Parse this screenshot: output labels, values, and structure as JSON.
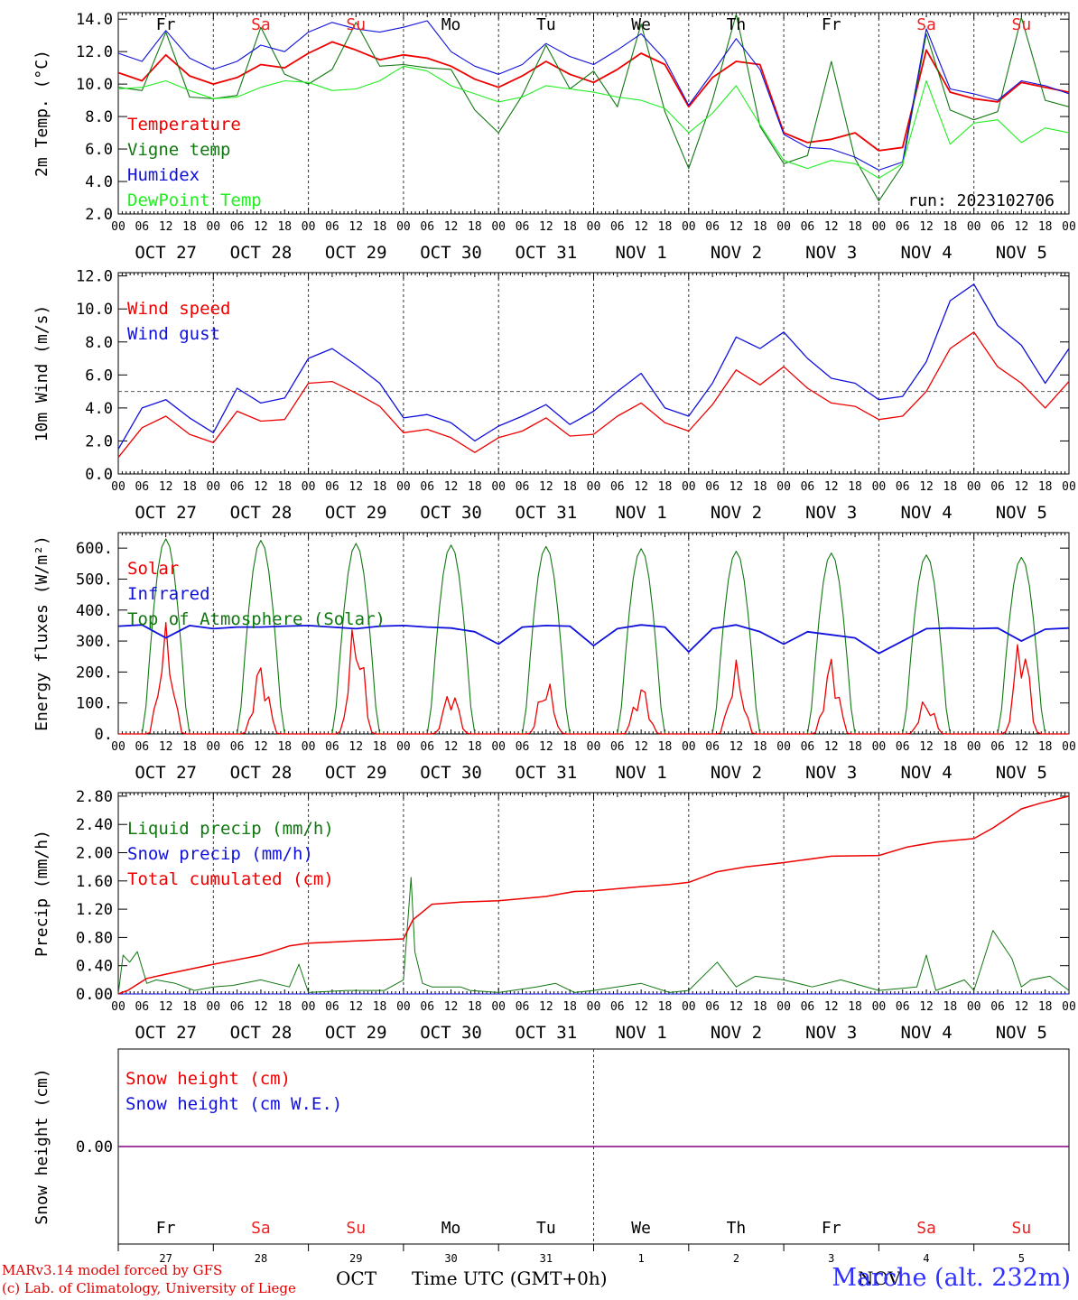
{
  "days_short": [
    "OCT 27",
    "OCT 28",
    "OCT 29",
    "OCT 30",
    "OCT 31",
    "NOV  1",
    "NOV  2",
    "NOV  3",
    "NOV  4",
    "NOV  5"
  ],
  "weekdays": [
    "Fr",
    "Sa",
    "Su",
    "Mo",
    "Tu",
    "We",
    "Th",
    "Fr",
    "Sa",
    "Su"
  ],
  "day_numbers": [
    "27",
    "28",
    "29",
    "30",
    "31",
    "1",
    "2",
    "3",
    "4",
    "5"
  ],
  "hour_ticks": [
    "00",
    "06",
    "12",
    "18"
  ],
  "last_tick": "00",
  "colors": {
    "red": "#ee0000",
    "green": "#117711",
    "blue": "#1010dd",
    "light_green": "#22ee22",
    "weekend": "#ee2222",
    "purple": "#800080"
  },
  "footer": {
    "credit_line1": "MARv3.14 model forced by GFS",
    "credit_line2": "(c) Lab. of Climatology, University of Liege",
    "station": "Marche (alt. 232m)",
    "month_oct": "OCT",
    "time_label": "Time UTC (GMT+0h)",
    "month_nov": "NOV"
  },
  "chart_data": [
    {
      "type": "line",
      "ylabel": "2m Temp. (°C)",
      "ylim": [
        2,
        14.4
      ],
      "yticks": [
        "2.0",
        "4.0",
        "6.0",
        "8.0",
        "10.0",
        "12.0",
        "14.0"
      ],
      "annotation": "run: 2023102706",
      "x_days": [
        0,
        0.25,
        0.5,
        0.75,
        1,
        1.25,
        1.5,
        1.75,
        2,
        2.25,
        2.5,
        2.75,
        3,
        3.25,
        3.5,
        3.75,
        4,
        4.25,
        4.5,
        4.75,
        5,
        5.25,
        5.5,
        5.75,
        6,
        6.25,
        6.5,
        6.75,
        7,
        7.25,
        7.5,
        7.75,
        8,
        8.25,
        8.5,
        8.75,
        9,
        9.25,
        9.5,
        9.75,
        10
      ],
      "series": [
        {
          "name": "Temperature",
          "color": "red",
          "values": [
            10.7,
            10.2,
            11.8,
            10.5,
            10.0,
            10.4,
            11.2,
            11.0,
            11.9,
            12.6,
            12.1,
            11.5,
            11.8,
            11.6,
            11.1,
            10.3,
            9.8,
            10.5,
            11.4,
            10.6,
            10.1,
            10.9,
            11.9,
            11.2,
            8.6,
            10.4,
            11.4,
            11.2,
            7.0,
            6.4,
            6.6,
            7.0,
            5.9,
            6.1,
            12.1,
            9.5,
            9.1,
            8.9,
            10.1,
            9.8,
            9.5
          ]
        },
        {
          "name": "Vigne temp",
          "color": "green",
          "values": [
            9.8,
            9.6,
            13.2,
            9.2,
            9.1,
            9.3,
            13.5,
            10.6,
            10.0,
            10.9,
            13.8,
            11.1,
            11.2,
            11.0,
            10.9,
            8.4,
            7.0,
            9.3,
            12.4,
            9.7,
            10.8,
            8.6,
            13.7,
            8.3,
            4.8,
            9.0,
            14.3,
            7.4,
            5.1,
            5.6,
            11.4,
            5.4,
            2.8,
            5.0,
            13.1,
            8.4,
            7.8,
            8.3,
            14.1,
            9.0,
            8.6
          ]
        },
        {
          "name": "Humidex",
          "color": "blue",
          "values": [
            11.9,
            11.4,
            13.3,
            11.6,
            10.9,
            11.4,
            12.4,
            12.0,
            13.2,
            13.8,
            13.4,
            13.2,
            13.5,
            13.9,
            12.0,
            11.1,
            10.6,
            11.2,
            12.5,
            11.7,
            11.2,
            12.1,
            13.1,
            11.5,
            8.7,
            10.7,
            12.8,
            10.9,
            6.9,
            6.1,
            6.0,
            5.5,
            4.7,
            5.2,
            13.4,
            9.7,
            9.4,
            9.0,
            10.2,
            9.9,
            9.4
          ]
        },
        {
          "name": "DewPoint Temp",
          "color": "light_green",
          "values": [
            9.7,
            9.8,
            10.2,
            9.6,
            9.1,
            9.2,
            9.8,
            10.2,
            10.1,
            9.6,
            9.7,
            10.2,
            11.1,
            10.8,
            9.9,
            9.4,
            8.9,
            9.2,
            9.9,
            9.7,
            9.5,
            9.2,
            9.0,
            8.5,
            7.0,
            8.2,
            9.9,
            7.5,
            5.3,
            4.8,
            5.3,
            5.1,
            4.2,
            5.1,
            10.2,
            6.3,
            7.6,
            7.8,
            6.4,
            7.3,
            7.0
          ]
        }
      ]
    },
    {
      "type": "line",
      "ylabel": "10m Wind (m/s)",
      "ylim": [
        0,
        12.2
      ],
      "yticks": [
        "0.0",
        "2.0",
        "4.0",
        "6.0",
        "8.0",
        "10.0",
        "12.0"
      ],
      "reference_line": 5,
      "x_days": [
        0,
        0.25,
        0.5,
        0.75,
        1,
        1.25,
        1.5,
        1.75,
        2,
        2.25,
        2.5,
        2.75,
        3,
        3.25,
        3.5,
        3.75,
        4,
        4.25,
        4.5,
        4.75,
        5,
        5.25,
        5.5,
        5.75,
        6,
        6.25,
        6.5,
        6.75,
        7,
        7.25,
        7.5,
        7.75,
        8,
        8.25,
        8.5,
        8.75,
        9,
        9.25,
        9.5,
        9.75,
        10
      ],
      "series": [
        {
          "name": "Wind speed",
          "color": "red",
          "values": [
            1.0,
            2.8,
            3.5,
            2.4,
            1.9,
            3.8,
            3.2,
            3.3,
            5.5,
            5.6,
            4.9,
            4.1,
            2.5,
            2.7,
            2.2,
            1.3,
            2.2,
            2.6,
            3.4,
            2.3,
            2.4,
            3.5,
            4.3,
            3.1,
            2.6,
            4.2,
            6.3,
            5.4,
            6.5,
            5.2,
            4.3,
            4.1,
            3.3,
            3.5,
            5.0,
            7.6,
            8.6,
            6.5,
            5.5,
            4.0,
            5.6
          ]
        },
        {
          "name": "Wind gust",
          "color": "blue",
          "values": [
            1.5,
            4.0,
            4.5,
            3.4,
            2.5,
            5.2,
            4.3,
            4.6,
            7.0,
            7.6,
            6.6,
            5.5,
            3.4,
            3.6,
            3.1,
            2.0,
            2.9,
            3.5,
            4.2,
            3.0,
            3.8,
            5.0,
            6.1,
            4.0,
            3.5,
            5.5,
            8.3,
            7.6,
            8.6,
            7.0,
            5.8,
            5.5,
            4.5,
            4.7,
            6.8,
            10.5,
            11.5,
            9.0,
            7.8,
            5.5,
            7.6
          ]
        }
      ]
    },
    {
      "type": "line",
      "ylabel": "Energy fluxes (W/m²)",
      "ylim": [
        0,
        650
      ],
      "yticks": [
        "0.",
        "100.",
        "200.",
        "300.",
        "400.",
        "500.",
        "600."
      ],
      "toa_peaks": [
        630,
        625,
        615,
        610,
        605,
        598,
        590,
        584,
        578,
        570
      ],
      "solar_peaks": [
        360,
        245,
        385,
        155,
        185,
        170,
        240,
        260,
        120,
        350
      ],
      "series": [
        {
          "name": "Solar",
          "color": "red"
        },
        {
          "name": "Infrared",
          "color": "blue",
          "x_days": [
            0,
            0.25,
            0.5,
            0.75,
            1,
            1.25,
            1.5,
            1.75,
            2,
            2.25,
            2.5,
            2.75,
            3,
            3.25,
            3.5,
            3.75,
            4,
            4.25,
            4.5,
            4.75,
            5,
            5.25,
            5.5,
            5.75,
            6,
            6.25,
            6.5,
            6.75,
            7,
            7.25,
            7.5,
            7.75,
            8,
            8.25,
            8.5,
            8.75,
            9,
            9.25,
            9.5,
            9.75,
            10
          ],
          "values": [
            348,
            352,
            310,
            350,
            340,
            345,
            345,
            348,
            350,
            345,
            340,
            348,
            350,
            345,
            342,
            330,
            290,
            345,
            350,
            348,
            285,
            340,
            352,
            345,
            265,
            340,
            352,
            330,
            290,
            330,
            320,
            310,
            260,
            300,
            340,
            342,
            340,
            342,
            300,
            338,
            342
          ]
        },
        {
          "name": "Top of Atmosphere (Solar)",
          "color": "green"
        }
      ]
    },
    {
      "type": "line",
      "ylabel": "Precip (mm/h)",
      "ylim": [
        0,
        2.85
      ],
      "yticks": [
        "0.00",
        "0.40",
        "0.80",
        "1.20",
        "1.60",
        "2.00",
        "2.40",
        "2.80"
      ],
      "series": [
        {
          "name": "Liquid precip (mm/h)",
          "color": "green",
          "x_days": [
            0,
            0.05,
            0.12,
            0.2,
            0.3,
            0.4,
            0.6,
            0.8,
            1.0,
            1.2,
            1.5,
            1.8,
            1.9,
            2.0,
            2.4,
            2.8,
            3.0,
            3.08,
            3.12,
            3.2,
            3.3,
            3.6,
            3.7,
            4.0,
            4.4,
            4.6,
            4.8,
            5.0,
            5.5,
            5.8,
            6.0,
            6.3,
            6.5,
            6.7,
            7.0,
            7.3,
            7.6,
            8.0,
            8.4,
            8.5,
            8.6,
            8.9,
            9.0,
            9.2,
            9.4,
            9.5,
            9.6,
            9.8,
            10.0
          ],
          "values": [
            0,
            0.55,
            0.45,
            0.6,
            0.15,
            0.2,
            0.15,
            0.05,
            0.1,
            0.12,
            0.2,
            0.1,
            0.42,
            0.02,
            0.05,
            0.05,
            0.2,
            1.65,
            0.6,
            0.15,
            0.1,
            0.1,
            0.05,
            0.02,
            0.1,
            0.15,
            0.02,
            0.05,
            0.15,
            0.02,
            0.05,
            0.45,
            0.1,
            0.25,
            0.2,
            0.1,
            0.2,
            0.05,
            0.1,
            0.55,
            0.05,
            0.2,
            0.05,
            0.9,
            0.5,
            0.1,
            0.2,
            0.25,
            0.05
          ]
        },
        {
          "name": "Snow precip (mm/h)",
          "color": "blue",
          "x_days": [
            0,
            10
          ],
          "values": [
            0,
            0
          ]
        },
        {
          "name": "Total cumulated (cm)",
          "color": "red",
          "x_days": [
            0,
            0.1,
            0.3,
            0.5,
            1.0,
            1.5,
            1.8,
            2.0,
            2.5,
            3.0,
            3.1,
            3.3,
            3.6,
            4.0,
            4.5,
            4.8,
            5.0,
            5.5,
            5.8,
            6.0,
            6.3,
            6.6,
            7.0,
            7.5,
            8.0,
            8.3,
            8.6,
            9.0,
            9.2,
            9.5,
            9.7,
            10.0
          ],
          "values": [
            0,
            0.05,
            0.22,
            0.28,
            0.42,
            0.55,
            0.68,
            0.72,
            0.75,
            0.78,
            1.05,
            1.27,
            1.3,
            1.32,
            1.38,
            1.45,
            1.46,
            1.52,
            1.55,
            1.58,
            1.73,
            1.8,
            1.86,
            1.95,
            1.96,
            2.08,
            2.15,
            2.2,
            2.35,
            2.62,
            2.7,
            2.8
          ]
        }
      ]
    },
    {
      "type": "line",
      "ylabel": "Snow height (cm)",
      "yticks": [
        "0.00"
      ],
      "series": [
        {
          "name": "Snow height (cm)",
          "color": "red",
          "x_days": [
            0,
            10
          ],
          "values": [
            0,
            0
          ]
        },
        {
          "name": "Snow height (cm W.E.)",
          "color": "blue",
          "x_days": [
            0,
            10
          ],
          "values": [
            0,
            0
          ]
        }
      ]
    }
  ]
}
